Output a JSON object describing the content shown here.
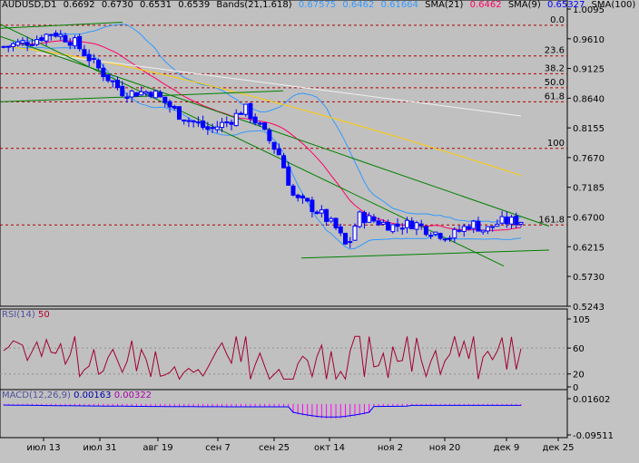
{
  "header": {
    "symbol": "AUDUSD,D1",
    "ohlc": [
      "0.6692",
      "0.6730",
      "0.6531",
      "0.6539"
    ],
    "bands_label": "Bands(21,1.618)",
    "bands_values": [
      "0.67575",
      "0.6462",
      "0.61664"
    ],
    "sma21_label": "SMA(21)",
    "sma21_value": "0.6462",
    "sma9_label": "SMA(9)",
    "sma9_value": "0.65327",
    "sma100_label": "SMA(100)"
  },
  "colors": {
    "background": "#c3c3c3",
    "panel_bg": "#c0c0c0",
    "bull": "#0000ff",
    "bear": "#0000ff",
    "bands": "#3399ff",
    "sma21": "#ff0066",
    "sma100": "#ffcc00",
    "trend": "#008000",
    "fib": "#b00000",
    "rsi": "#a00030",
    "macd_hist": "#ff00ff",
    "macd_line": "#0000ff"
  },
  "rsi": {
    "label": "RSI(14)",
    "value": "50"
  },
  "macd": {
    "label": "MACD(12,26,9)",
    "values": [
      "0.00163",
      "0.00322"
    ]
  },
  "chart_data": {
    "type": "candlestick",
    "x_labels": [
      "июл 13",
      "июл 31",
      "авг 19",
      "сен 7",
      "сен 25",
      "окт 14",
      "ноя 2",
      "ноя 20",
      "дек 9",
      "дек 25"
    ],
    "y_ticks": [
      "1.0095",
      "0.9610",
      "0.9125",
      "0.8640",
      "0.8155",
      "0.7670",
      "0.7185",
      "0.6700",
      "0.6215",
      "0.5730",
      "0.5243"
    ],
    "ylim": [
      0.5243,
      1.0095
    ],
    "fib_levels": [
      {
        "label": "0.0",
        "price": 0.983
      },
      {
        "label": "23.6",
        "price": 0.933
      },
      {
        "label": "38.2",
        "price": 0.904
      },
      {
        "label": "50.0",
        "price": 0.881
      },
      {
        "label": "61.8",
        "price": 0.858
      },
      {
        "label": "100",
        "price": 0.782
      },
      {
        "label": "161.8",
        "price": 0.657
      }
    ],
    "rsi_ticks": [
      "105",
      "60",
      "20",
      "0"
    ],
    "macd_ticks": [
      "0.01602",
      "-0.09511"
    ]
  }
}
